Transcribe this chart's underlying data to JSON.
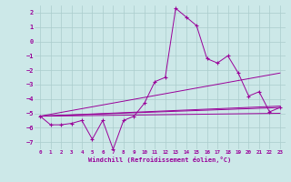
{
  "bg_color": "#cce8e8",
  "grid_color": "#aacccc",
  "line_color": "#990099",
  "xlabel": "Windchill (Refroidissement éolien,°C)",
  "xlim": [
    -0.5,
    23.5
  ],
  "ylim": [
    -7.5,
    2.5
  ],
  "yticks": [
    2,
    1,
    0,
    -1,
    -2,
    -3,
    -4,
    -5,
    -6,
    -7
  ],
  "xticks": [
    0,
    1,
    2,
    3,
    4,
    5,
    6,
    7,
    8,
    9,
    10,
    11,
    12,
    13,
    14,
    15,
    16,
    17,
    18,
    19,
    20,
    21,
    22,
    23
  ],
  "series1_x": [
    0,
    1,
    2,
    3,
    4,
    5,
    6,
    7,
    8,
    9,
    10,
    11,
    12,
    13,
    14,
    15,
    16,
    17,
    18,
    19,
    20,
    21,
    22,
    23
  ],
  "series1_y": [
    -5.2,
    -5.8,
    -5.8,
    -5.7,
    -5.5,
    -6.8,
    -5.5,
    -7.5,
    -5.5,
    -5.2,
    -4.3,
    -2.8,
    -2.5,
    2.3,
    1.7,
    1.1,
    -1.2,
    -1.5,
    -1.0,
    -2.2,
    -3.8,
    -3.5,
    -4.9,
    -4.6
  ],
  "trend1_x": [
    0,
    23
  ],
  "trend1_y": [
    -5.2,
    -4.5
  ],
  "trend2_x": [
    0,
    23
  ],
  "trend2_y": [
    -5.2,
    -2.2
  ],
  "trend3_x": [
    0,
    23
  ],
  "trend3_y": [
    -5.2,
    -4.6
  ],
  "trend4_x": [
    0,
    23
  ],
  "trend4_y": [
    -5.2,
    -5.0
  ]
}
